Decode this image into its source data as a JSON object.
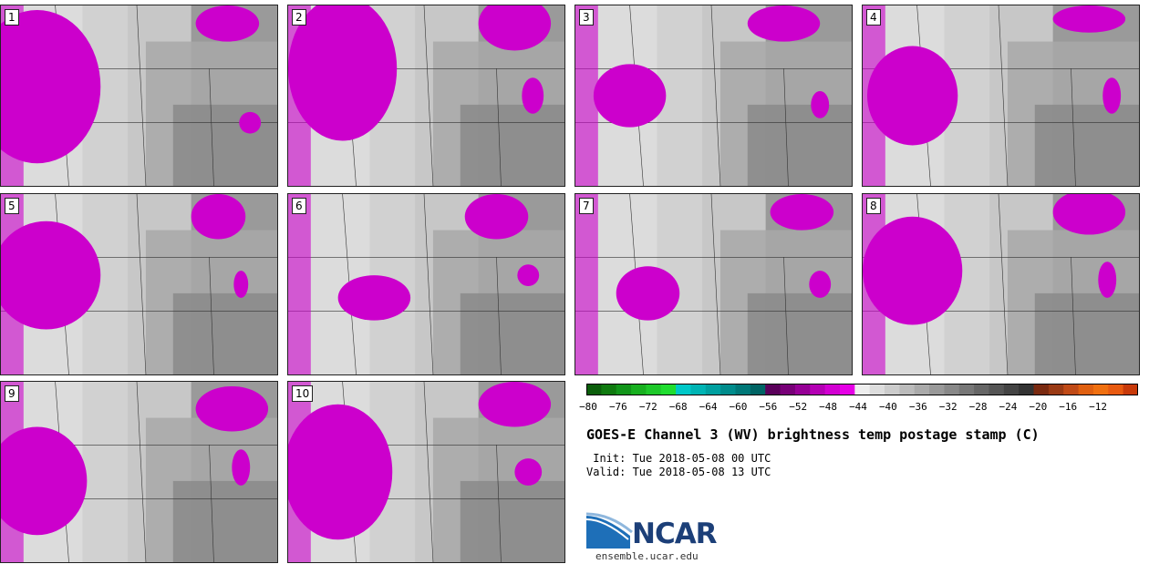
{
  "panels": [
    {
      "label": "1",
      "row": 0,
      "col": 0,
      "blobs": [
        [
          40,
          90,
          70,
          85
        ],
        [
          250,
          20,
          35,
          20
        ],
        [
          275,
          130,
          12,
          12
        ]
      ]
    },
    {
      "label": "2",
      "row": 0,
      "col": 1,
      "blobs": [
        [
          60,
          70,
          60,
          80
        ],
        [
          250,
          20,
          40,
          30
        ],
        [
          270,
          100,
          12,
          20
        ]
      ]
    },
    {
      "label": "3",
      "row": 0,
      "col": 2,
      "blobs": [
        [
          60,
          100,
          40,
          35
        ],
        [
          230,
          20,
          40,
          20
        ],
        [
          270,
          110,
          10,
          15
        ]
      ]
    },
    {
      "label": "4",
      "row": 0,
      "col": 3,
      "blobs": [
        [
          55,
          100,
          50,
          55
        ],
        [
          250,
          15,
          40,
          15
        ],
        [
          275,
          100,
          10,
          20
        ]
      ]
    },
    {
      "label": "5",
      "row": 1,
      "col": 0,
      "blobs": [
        [
          50,
          90,
          60,
          60
        ],
        [
          240,
          25,
          30,
          25
        ],
        [
          265,
          100,
          8,
          15
        ]
      ]
    },
    {
      "label": "6",
      "row": 1,
      "col": 1,
      "blobs": [
        [
          95,
          115,
          40,
          25
        ],
        [
          230,
          25,
          35,
          25
        ],
        [
          265,
          90,
          12,
          12
        ]
      ]
    },
    {
      "label": "7",
      "row": 1,
      "col": 2,
      "blobs": [
        [
          80,
          110,
          35,
          30
        ],
        [
          250,
          20,
          35,
          20
        ],
        [
          270,
          100,
          12,
          15
        ]
      ]
    },
    {
      "label": "8",
      "row": 1,
      "col": 3,
      "blobs": [
        [
          55,
          85,
          55,
          60
        ],
        [
          250,
          20,
          40,
          25
        ],
        [
          270,
          95,
          10,
          20
        ]
      ]
    },
    {
      "label": "9",
      "row": 2,
      "col": 0,
      "blobs": [
        [
          40,
          110,
          55,
          60
        ],
        [
          255,
          30,
          40,
          25
        ],
        [
          265,
          95,
          10,
          20
        ]
      ]
    },
    {
      "label": "10",
      "row": 2,
      "col": 1,
      "blobs": [
        [
          55,
          100,
          60,
          75
        ],
        [
          250,
          25,
          40,
          25
        ],
        [
          265,
          100,
          15,
          15
        ]
      ]
    }
  ],
  "chart_data": {
    "type": "heatmap",
    "title": "GOES-E Channel 3 (WV) brightness temp postage stamp (C)",
    "colorbar": {
      "ticks": [
        "−80",
        "−76",
        "−72",
        "−68",
        "−64",
        "−60",
        "−56",
        "−52",
        "−48",
        "−44",
        "−40",
        "−36",
        "−32",
        "−28",
        "−24",
        "−20",
        "−16",
        "−12"
      ],
      "colors": [
        "#0b5e0b",
        "#0f7a0f",
        "#12951a",
        "#18b020",
        "#1ec82a",
        "#20dd30",
        "#00c8c8",
        "#00b4b4",
        "#00a0a0",
        "#008c8c",
        "#007878",
        "#006464",
        "#5a005a",
        "#780078",
        "#960096",
        "#b400b4",
        "#d200d2",
        "#e600e6",
        "#eeeeee",
        "#dddddd",
        "#cccccc",
        "#bbbbbb",
        "#aaaaaa",
        "#999999",
        "#888888",
        "#777777",
        "#666666",
        "#555555",
        "#444444",
        "#333333",
        "#7a2a10",
        "#9a3a14",
        "#c04a16",
        "#e06010",
        "#f07010",
        "#e85a10",
        "#c83a0a"
      ]
    }
  },
  "info": {
    "init": " Init: Tue 2018-05-08 00 UTC",
    "valid": "Valid: Tue 2018-05-08 13 UTC"
  },
  "logo": {
    "name": "NCAR",
    "url": "ensemble.ucar.edu"
  }
}
